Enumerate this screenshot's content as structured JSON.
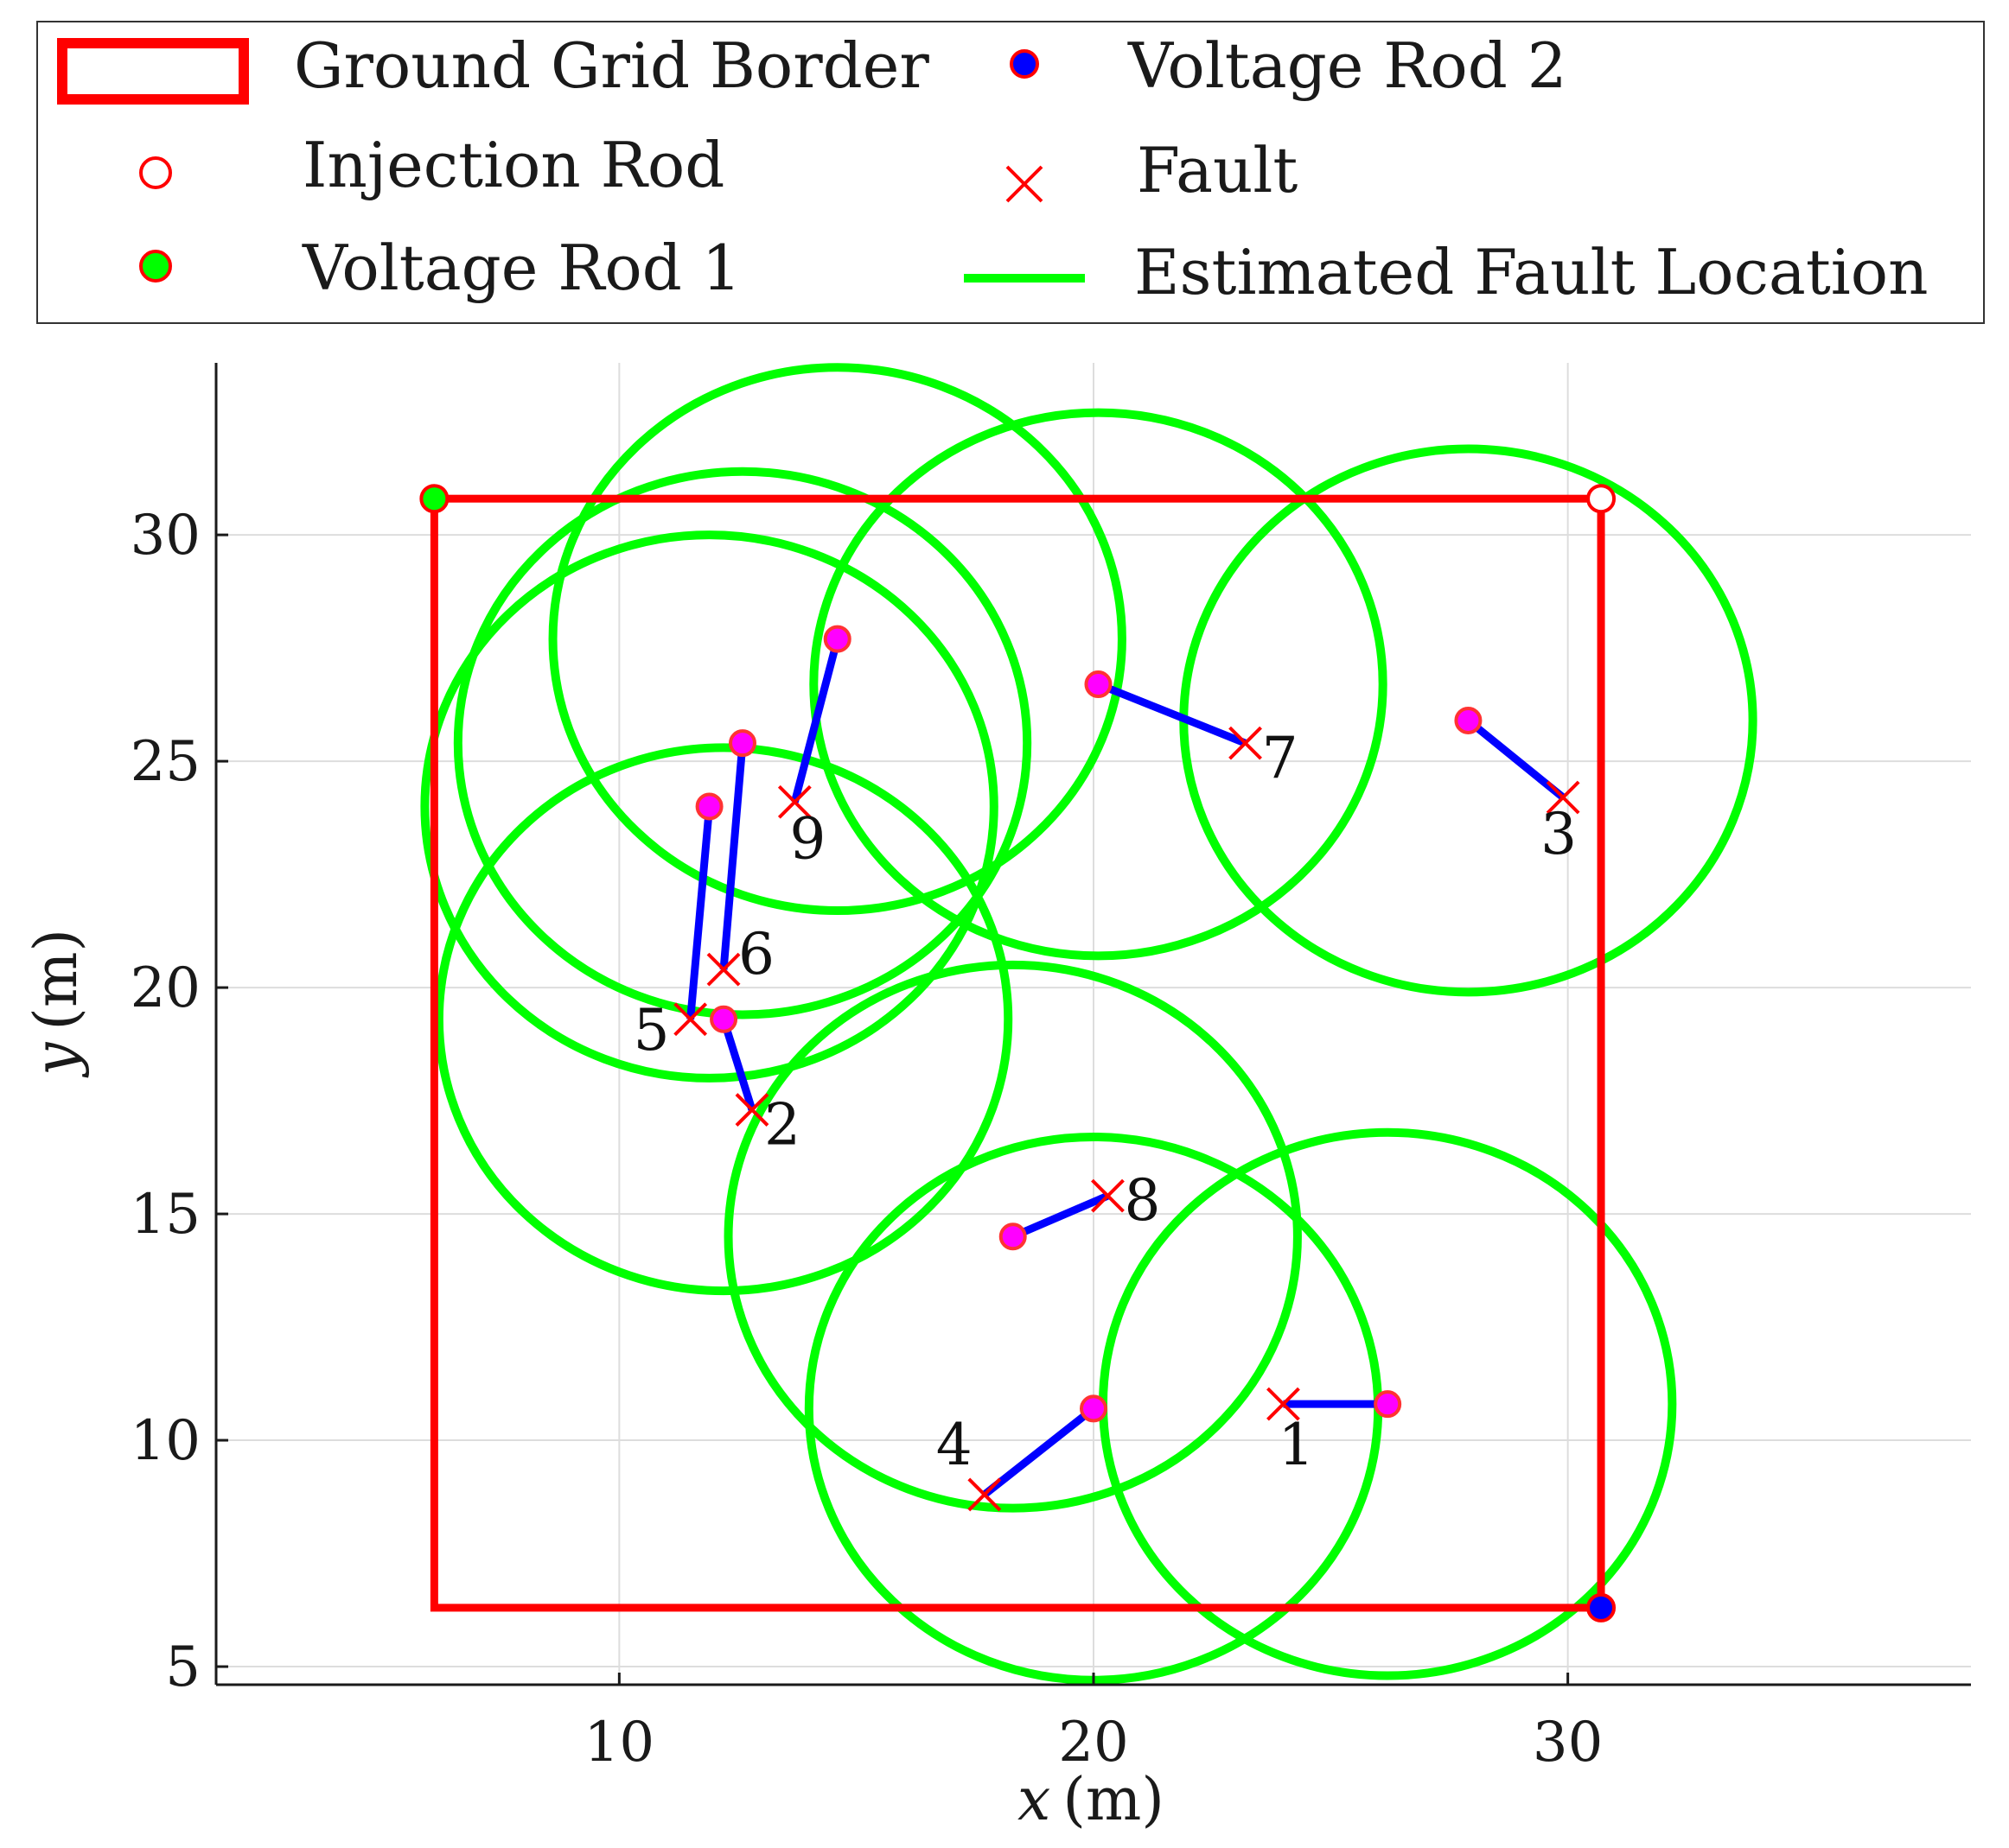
{
  "chart_data": {
    "type": "scatter",
    "title": "",
    "xlabel": "x (m)",
    "ylabel": "y (m)",
    "xlabel_var": "x",
    "xlabel_unit": "(m)",
    "ylabel_var": "y",
    "ylabel_unit": "(m)",
    "xlim": [
      1.5,
      38.5
    ],
    "ylim": [
      4.6,
      33.8
    ],
    "xticks": [
      10,
      20,
      30
    ],
    "yticks": [
      5,
      10,
      15,
      20,
      25,
      30
    ],
    "xtick_labels": [
      "10",
      "20",
      "30"
    ],
    "ytick_labels": [
      "5",
      "10",
      "15",
      "20",
      "25",
      "30"
    ],
    "grid": true,
    "legend_position": "top",
    "legend": [
      {
        "label": "Ground Grid Border",
        "marker": "rectangle"
      },
      {
        "label": "Voltage Rod 2",
        "marker": "filled-circle"
      },
      {
        "label": "Injection Rod",
        "marker": "open-circle"
      },
      {
        "label": "Fault",
        "marker": "cross"
      },
      {
        "label": "Voltage Rod 1",
        "marker": "filled-circle"
      },
      {
        "label": "Estimated Fault Location",
        "marker": "line"
      }
    ],
    "ground_grid_border": {
      "x0": 6.1,
      "x1": 30.7,
      "y0": 6.3,
      "y1": 30.8
    },
    "injection_rod": {
      "x": 30.7,
      "y": 30.8
    },
    "voltage_rod_1": {
      "x": 6.1,
      "y": 30.8
    },
    "voltage_rod_2": {
      "x": 30.7,
      "y": 6.3
    },
    "faults": [
      {
        "label": "1",
        "fault": [
          24.0,
          10.8
        ],
        "estimate": [
          26.2,
          10.8
        ],
        "radius": 6.0
      },
      {
        "label": "2",
        "fault": [
          12.8,
          17.3
        ],
        "estimate": [
          12.2,
          19.3
        ],
        "radius": 6.0
      },
      {
        "label": "3",
        "fault": [
          29.9,
          24.2
        ],
        "estimate": [
          27.9,
          25.9
        ],
        "radius": 6.0
      },
      {
        "label": "4",
        "fault": [
          17.7,
          8.8
        ],
        "estimate": [
          20.0,
          10.7
        ],
        "radius": 6.0
      },
      {
        "label": "5",
        "fault": [
          11.5,
          19.3
        ],
        "estimate": [
          11.9,
          24.0
        ],
        "radius": 6.0
      },
      {
        "label": "6",
        "fault": [
          12.2,
          20.4
        ],
        "estimate": [
          12.6,
          25.4
        ],
        "radius": 6.0
      },
      {
        "label": "7",
        "fault": [
          23.2,
          25.4
        ],
        "estimate": [
          20.1,
          26.7
        ],
        "radius": 6.0
      },
      {
        "label": "8",
        "fault": [
          20.3,
          15.4
        ],
        "estimate": [
          18.3,
          14.5
        ],
        "radius": 6.0
      },
      {
        "label": "9",
        "fault": [
          13.7,
          24.1
        ],
        "estimate": [
          14.6,
          27.7
        ],
        "radius": 6.0
      }
    ]
  },
  "colors": {
    "border": "#ff0000",
    "circle": "#00ff00",
    "segment": "#0000ff",
    "estimate_fill": "#ff00ff",
    "estimate_edge": "#ff3333",
    "fault": "#ff0000",
    "grid": "#dddddd",
    "axis": "#1a1a1a"
  }
}
